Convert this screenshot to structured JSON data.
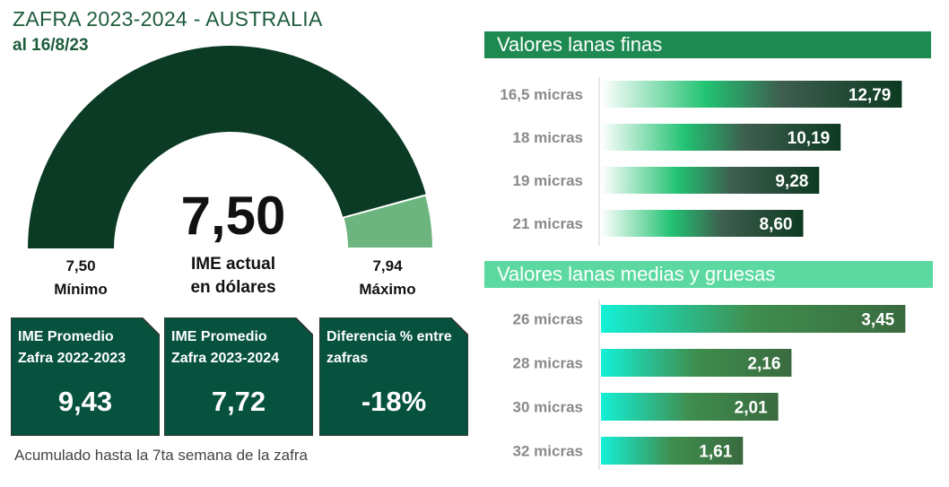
{
  "header": {
    "title": "ZAFRA 2023-2024 - AUSTRALIA",
    "date": "al 16/8/23"
  },
  "gauge": {
    "value": "7,50",
    "label_line1": "IME actual",
    "label_line2": "en dólares",
    "min_value": "7,50",
    "min_label": "Mínimo",
    "max_value": "7,94",
    "max_label": "Máximo",
    "min": 7.5,
    "max": 7.94,
    "current": 7.5,
    "dark_color": "#0b3b24",
    "light_color": "#6db57f"
  },
  "cards": [
    {
      "label": "IME Promedio Zafra 2022-2023",
      "value": "9,43"
    },
    {
      "label": "IME Promedio Zafra 2023-2024",
      "value": "7,72"
    },
    {
      "label": "Diferencia % entre zafras",
      "value": "-18%"
    }
  ],
  "note": "Acumulado hasta la 7ta semana de la zafra",
  "sections": {
    "fine": {
      "title": "Valores lanas finas",
      "color": "#1e8a52"
    },
    "medium": {
      "title": "Valores lanas medias y gruesas",
      "color": "#5cd9a0"
    }
  },
  "chart_data": [
    {
      "type": "bar",
      "orientation": "horizontal",
      "title": "Valores lanas finas",
      "categories": [
        "16,5 micras",
        "18 micras",
        "19 micras",
        "21 micras"
      ],
      "values": [
        12.79,
        10.19,
        9.28,
        8.6
      ],
      "labels": [
        "12,79",
        "10,19",
        "9,28",
        "8,60"
      ],
      "xlim": [
        0,
        13.5
      ]
    },
    {
      "type": "bar",
      "orientation": "horizontal",
      "title": "Valores lanas medias y gruesas",
      "categories": [
        "26 micras",
        "28 micras",
        "30 micras",
        "32 micras"
      ],
      "values": [
        3.45,
        2.16,
        2.01,
        1.61
      ],
      "labels": [
        "3,45",
        "2,16",
        "2,01",
        "1,61"
      ],
      "xlim": [
        0,
        3.6
      ]
    }
  ]
}
